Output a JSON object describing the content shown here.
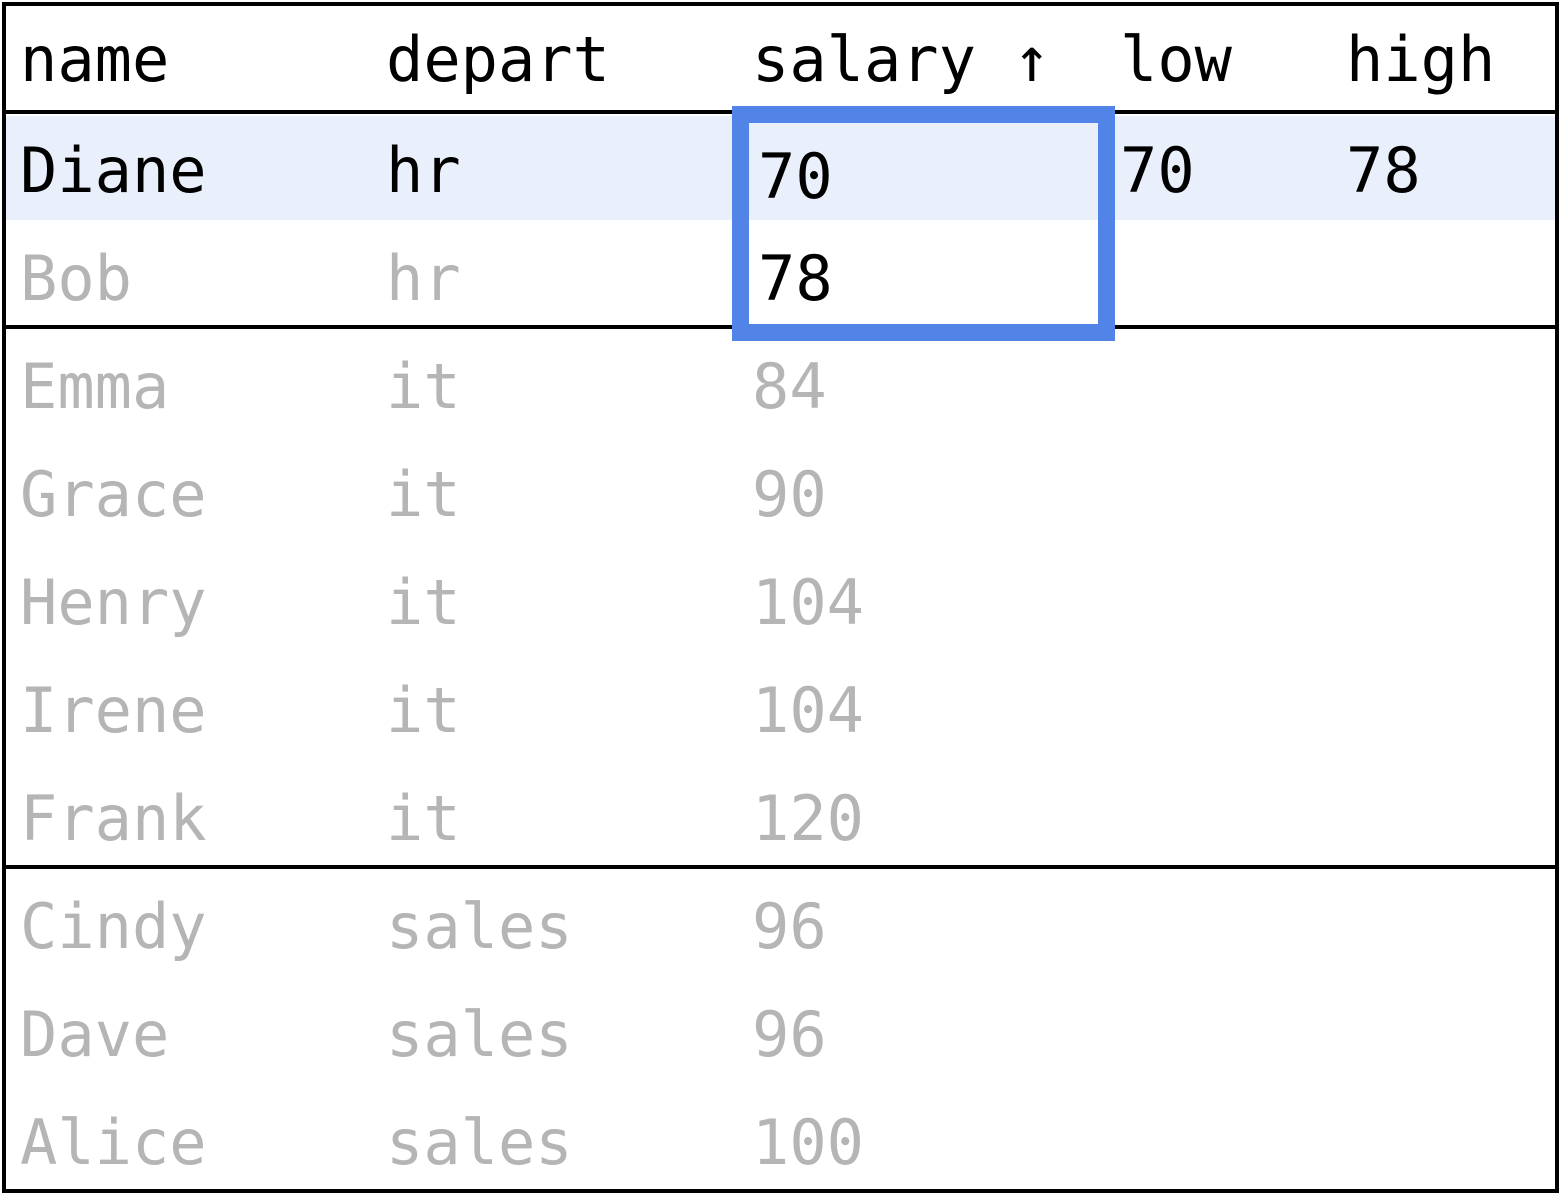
{
  "table": {
    "columns": [
      "name",
      "depart",
      "salary ↑",
      "low",
      "high"
    ],
    "highlighted_row_index": 0,
    "rows": [
      {
        "name": "Diane",
        "depart": "hr",
        "salary": "70",
        "low": "70",
        "high": "78",
        "dimmed": false
      },
      {
        "name": "Bob",
        "depart": "hr",
        "salary": "78",
        "low": "",
        "high": "",
        "dimmed": true,
        "salary_dimmed": false
      },
      {
        "name": "Emma",
        "depart": "it",
        "salary": "84",
        "low": "",
        "high": "",
        "dimmed": true
      },
      {
        "name": "Grace",
        "depart": "it",
        "salary": "90",
        "low": "",
        "high": "",
        "dimmed": true
      },
      {
        "name": "Henry",
        "depart": "it",
        "salary": "104",
        "low": "",
        "high": "",
        "dimmed": true
      },
      {
        "name": "Irene",
        "depart": "it",
        "salary": "104",
        "low": "",
        "high": "",
        "dimmed": true
      },
      {
        "name": "Frank",
        "depart": "it",
        "salary": "120",
        "low": "",
        "high": "",
        "dimmed": true
      },
      {
        "name": "Cindy",
        "depart": "sales",
        "salary": "96",
        "low": "",
        "high": "",
        "dimmed": true
      },
      {
        "name": "Dave",
        "depart": "sales",
        "salary": "96",
        "low": "",
        "high": "",
        "dimmed": true
      },
      {
        "name": "Alice",
        "depart": "sales",
        "salary": "100",
        "low": "",
        "high": "",
        "dimmed": true
      }
    ]
  },
  "colors": {
    "text": "#000000",
    "dimmed_text": "#b5b5b5",
    "row_highlight": "#e9f0fb",
    "window_frame": "#5283e6",
    "borders": "#000000"
  }
}
